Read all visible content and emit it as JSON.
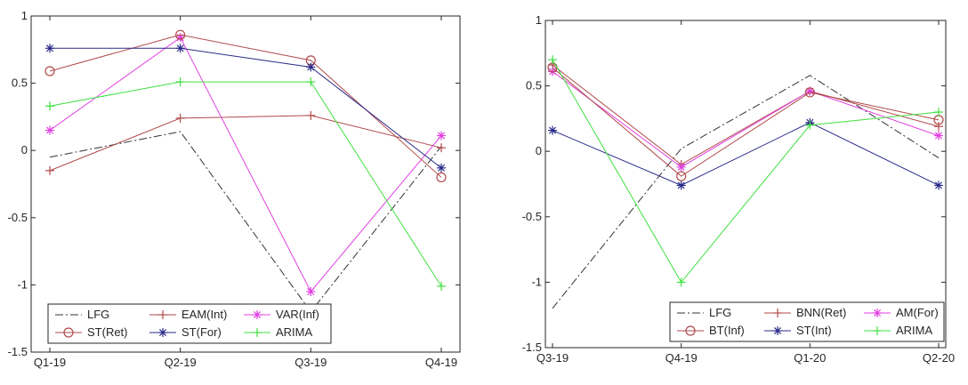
{
  "chart_data": [
    {
      "type": "line",
      "categories": [
        "Q1-19",
        "Q2-19",
        "Q3-19",
        "Q4-19"
      ],
      "ylim": [
        -1.5,
        1
      ],
      "yticks": [
        "-1.5",
        "-1",
        "-0.5",
        "0",
        "0.5",
        "1"
      ],
      "legend_placement": "bottom-left",
      "grid": false,
      "series": [
        {
          "name": "LFG",
          "color": "#333333",
          "style": "dashdot",
          "marker": "none",
          "values": [
            -0.05,
            0.14,
            -1.2,
            0.03
          ]
        },
        {
          "name": "EAM(Int)",
          "color": "#b04a4a",
          "style": "solid",
          "marker": "plus",
          "values": [
            -0.15,
            0.24,
            0.26,
            0.02
          ]
        },
        {
          "name": "VAR(Inf)",
          "color": "#e040e0",
          "style": "solid",
          "marker": "star",
          "values": [
            0.15,
            0.84,
            -1.05,
            0.11
          ]
        },
        {
          "name": "ST(Ret)",
          "color": "#b04a4a",
          "style": "solid",
          "marker": "circle",
          "values": [
            0.59,
            0.86,
            0.67,
            -0.2
          ]
        },
        {
          "name": "ST(For)",
          "color": "#2a2a8a",
          "style": "solid",
          "marker": "star",
          "values": [
            0.76,
            0.76,
            0.62,
            -0.13
          ]
        },
        {
          "name": "ARIMA",
          "color": "#40e040",
          "style": "solid",
          "marker": "plus",
          "values": [
            0.33,
            0.51,
            0.51,
            -1.01
          ]
        }
      ]
    },
    {
      "type": "line",
      "categories": [
        "Q3-19",
        "Q4-19",
        "Q1-20",
        "Q2-20"
      ],
      "ylim": [
        -1.5,
        1
      ],
      "yticks": [
        "-1.5",
        "-1",
        "-0.5",
        "0",
        "0.5",
        "1"
      ],
      "legend_placement": "bottom-right",
      "grid": false,
      "series": [
        {
          "name": "LFG",
          "color": "#333333",
          "style": "dashdot",
          "marker": "none",
          "values": [
            -1.2,
            0.02,
            0.58,
            -0.05
          ]
        },
        {
          "name": "BNN(Ret)",
          "color": "#b04a4a",
          "style": "solid",
          "marker": "plus",
          "values": [
            0.66,
            -0.1,
            0.46,
            0.19
          ]
        },
        {
          "name": "AM(For)",
          "color": "#e040e0",
          "style": "solid",
          "marker": "star",
          "values": [
            0.61,
            -0.12,
            0.46,
            0.12
          ]
        },
        {
          "name": "BT(Inf)",
          "color": "#b04a4a",
          "style": "solid",
          "marker": "circle",
          "values": [
            0.64,
            -0.19,
            0.45,
            0.24
          ]
        },
        {
          "name": "ST(Int)",
          "color": "#2a2a8a",
          "style": "solid",
          "marker": "star",
          "values": [
            0.16,
            -0.26,
            0.22,
            -0.26
          ]
        },
        {
          "name": "ARIMA",
          "color": "#40e040",
          "style": "solid",
          "marker": "plus",
          "values": [
            0.7,
            -1.0,
            0.2,
            0.3
          ]
        }
      ]
    }
  ]
}
